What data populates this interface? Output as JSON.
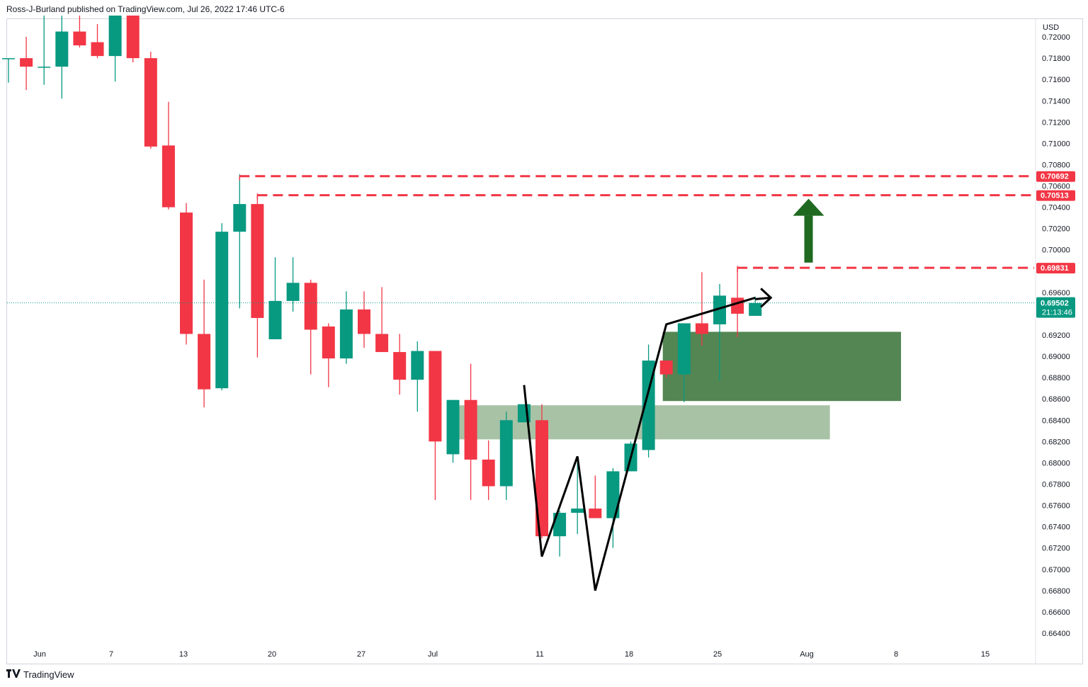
{
  "header": {
    "publisher_line": "Ross-J-Burland published on TradingView.com, Jul 26, 2022 17:46 UTC-6"
  },
  "footer": {
    "logo_icon": "tradingview-logo-icon",
    "brand": "TradingView"
  },
  "colors": {
    "up": "#089981",
    "down": "#f23645",
    "level_line": "#f23645",
    "zone_dark": "#4a7f4a",
    "zone_light": "#a3bfa0",
    "arrow": "#1f6a20",
    "current_price_bg": "#089981",
    "grid_line": "#e0e3eb"
  },
  "chart_data": {
    "type": "candlestick",
    "symbol_currency": "USD",
    "ylim": [
      0.6628,
      0.7216
    ],
    "y_tick_labels": [
      "0.72000",
      "0.71800",
      "0.71600",
      "0.71400",
      "0.71200",
      "0.71000",
      "0.70800",
      "0.70600",
      "0.70400",
      "0.70200",
      "0.70000",
      "0.69600",
      "0.69200",
      "0.69000",
      "0.68800",
      "0.68600",
      "0.68400",
      "0.68200",
      "0.68000",
      "0.67800",
      "0.67600",
      "0.67400",
      "0.67200",
      "0.67000",
      "0.66800",
      "0.66600",
      "0.66400"
    ],
    "x_tick_labels": [
      "Jun",
      "7",
      "13",
      "20",
      "27",
      "Jul",
      "11",
      "18",
      "25",
      "Aug",
      "8",
      "15"
    ],
    "candles": [
      {
        "o": 0.718,
        "h": 0.718,
        "l": 0.7157,
        "c": 0.718
      },
      {
        "o": 0.718,
        "h": 0.72,
        "l": 0.715,
        "c": 0.7172
      },
      {
        "o": 0.7172,
        "h": 0.722,
        "l": 0.7155,
        "c": 0.7172
      },
      {
        "o": 0.7172,
        "h": 0.722,
        "l": 0.7142,
        "c": 0.7205
      },
      {
        "o": 0.7205,
        "h": 0.722,
        "l": 0.719,
        "c": 0.7192
      },
      {
        "o": 0.7195,
        "h": 0.7212,
        "l": 0.718,
        "c": 0.7182
      },
      {
        "o": 0.7182,
        "h": 0.722,
        "l": 0.7158,
        "c": 0.722
      },
      {
        "o": 0.722,
        "h": 0.722,
        "l": 0.7176,
        "c": 0.718
      },
      {
        "o": 0.718,
        "h": 0.7186,
        "l": 0.7095,
        "c": 0.7097
      },
      {
        "o": 0.7098,
        "h": 0.7139,
        "l": 0.7038,
        "c": 0.704
      },
      {
        "o": 0.7035,
        "h": 0.7044,
        "l": 0.6911,
        "c": 0.6921
      },
      {
        "o": 0.6921,
        "h": 0.6972,
        "l": 0.6852,
        "c": 0.6869
      },
      {
        "o": 0.687,
        "h": 0.7025,
        "l": 0.6868,
        "c": 0.7017
      },
      {
        "o": 0.7017,
        "h": 0.7071,
        "l": 0.6945,
        "c": 0.7043
      },
      {
        "o": 0.7043,
        "h": 0.7053,
        "l": 0.6899,
        "c": 0.6936
      },
      {
        "o": 0.6916,
        "h": 0.6993,
        "l": 0.6916,
        "c": 0.6952
      },
      {
        "o": 0.6952,
        "h": 0.6993,
        "l": 0.6942,
        "c": 0.6969
      },
      {
        "o": 0.6969,
        "h": 0.6972,
        "l": 0.6883,
        "c": 0.6925
      },
      {
        "o": 0.6928,
        "h": 0.6931,
        "l": 0.6871,
        "c": 0.6898
      },
      {
        "o": 0.6898,
        "h": 0.6961,
        "l": 0.6893,
        "c": 0.6944
      },
      {
        "o": 0.6944,
        "h": 0.6961,
        "l": 0.6908,
        "c": 0.6921
      },
      {
        "o": 0.6921,
        "h": 0.6965,
        "l": 0.6905,
        "c": 0.6904
      },
      {
        "o": 0.6904,
        "h": 0.6921,
        "l": 0.6864,
        "c": 0.6878
      },
      {
        "o": 0.6878,
        "h": 0.6914,
        "l": 0.6848,
        "c": 0.6905
      },
      {
        "o": 0.6905,
        "h": 0.6905,
        "l": 0.6765,
        "c": 0.682
      },
      {
        "o": 0.6808,
        "h": 0.6859,
        "l": 0.68,
        "c": 0.6859
      },
      {
        "o": 0.6859,
        "h": 0.6893,
        "l": 0.6765,
        "c": 0.6803
      },
      {
        "o": 0.6803,
        "h": 0.6821,
        "l": 0.6765,
        "c": 0.6778
      },
      {
        "o": 0.6778,
        "h": 0.6848,
        "l": 0.6765,
        "c": 0.684
      },
      {
        "o": 0.6838,
        "h": 0.6855,
        "l": 0.684,
        "c": 0.6855
      },
      {
        "o": 0.684,
        "h": 0.6855,
        "l": 0.6729,
        "c": 0.6731
      },
      {
        "o": 0.6731,
        "h": 0.6755,
        "l": 0.6712,
        "c": 0.6753
      },
      {
        "o": 0.6753,
        "h": 0.68,
        "l": 0.6733,
        "c": 0.6757
      },
      {
        "o": 0.6757,
        "h": 0.6788,
        "l": 0.6748,
        "c": 0.6748
      },
      {
        "o": 0.6748,
        "h": 0.6795,
        "l": 0.672,
        "c": 0.6792
      },
      {
        "o": 0.6792,
        "h": 0.682,
        "l": 0.6792,
        "c": 0.6818
      },
      {
        "o": 0.6812,
        "h": 0.6911,
        "l": 0.6805,
        "c": 0.6896
      },
      {
        "o": 0.6896,
        "h": 0.6896,
        "l": 0.688,
        "c": 0.6883
      },
      {
        "o": 0.6883,
        "h": 0.6931,
        "l": 0.6857,
        "c": 0.6931
      },
      {
        "o": 0.6931,
        "h": 0.6979,
        "l": 0.691,
        "c": 0.6921
      },
      {
        "o": 0.693,
        "h": 0.6968,
        "l": 0.6877,
        "c": 0.6957
      },
      {
        "o": 0.6955,
        "h": 0.6985,
        "l": 0.6918,
        "c": 0.694
      },
      {
        "o": 0.6938,
        "h": 0.6956,
        "l": 0.6938,
        "c": 0.695
      }
    ],
    "levels": [
      {
        "label": "0.70692",
        "value": 0.70692,
        "start_candle": 13
      },
      {
        "label": "0.70513",
        "value": 0.70513,
        "start_candle": 14
      },
      {
        "label": "0.69831",
        "value": 0.69831,
        "start_candle": 41
      }
    ],
    "current_price": {
      "label": "0.69502",
      "countdown": "21:13:46",
      "value": 0.69502
    },
    "zones": [
      {
        "name": "upper-demand-zone",
        "from_candle": 37,
        "to_candle": 50,
        "top": 0.6923,
        "bottom": 0.6858
      },
      {
        "name": "lower-demand-zone",
        "from_candle": 25,
        "to_candle": 46,
        "top": 0.6854,
        "bottom": 0.6822
      }
    ],
    "arrow": {
      "direction": "up",
      "x_candle": 45,
      "from": 0.6988,
      "to": 0.7048
    },
    "pattern_path": [
      {
        "candle": 29,
        "price": 0.6873
      },
      {
        "candle": 30,
        "price": 0.6712
      },
      {
        "candle": 32,
        "price": 0.6806
      },
      {
        "candle": 33,
        "price": 0.668
      },
      {
        "candle": 37,
        "price": 0.693
      },
      {
        "candle": 42,
        "price": 0.6955
      }
    ],
    "grid": false
  }
}
